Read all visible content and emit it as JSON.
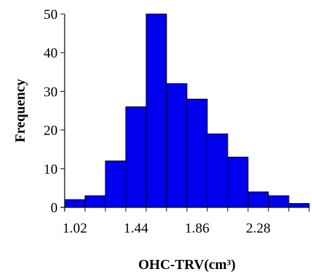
{
  "chart_data": {
    "type": "bar",
    "title": "",
    "xlabel": "OHC-TRV(cm³)",
    "ylabel": "Frequency",
    "x_tick_labels": [
      "1.02",
      "1.44",
      "1.86",
      "2.28"
    ],
    "y_ticks": [
      0,
      10,
      20,
      30,
      40,
      50
    ],
    "ylim": [
      0,
      50
    ],
    "bins": [
      {
        "from": 0.95,
        "to": 1.09,
        "value": 2
      },
      {
        "from": 1.09,
        "to": 1.23,
        "value": 3
      },
      {
        "from": 1.23,
        "to": 1.37,
        "value": 12
      },
      {
        "from": 1.37,
        "to": 1.51,
        "value": 26
      },
      {
        "from": 1.51,
        "to": 1.65,
        "value": 50
      },
      {
        "from": 1.65,
        "to": 1.79,
        "value": 32
      },
      {
        "from": 1.79,
        "to": 1.93,
        "value": 28
      },
      {
        "from": 1.93,
        "to": 2.07,
        "value": 19
      },
      {
        "from": 2.07,
        "to": 2.21,
        "value": 13
      },
      {
        "from": 2.21,
        "to": 2.35,
        "value": 4
      },
      {
        "from": 2.35,
        "to": 2.49,
        "value": 3
      },
      {
        "from": 2.49,
        "to": 2.63,
        "value": 1
      }
    ],
    "bar_color": "#0000ee",
    "bar_edge_color": "#000000",
    "grid": false,
    "legend": "none"
  }
}
